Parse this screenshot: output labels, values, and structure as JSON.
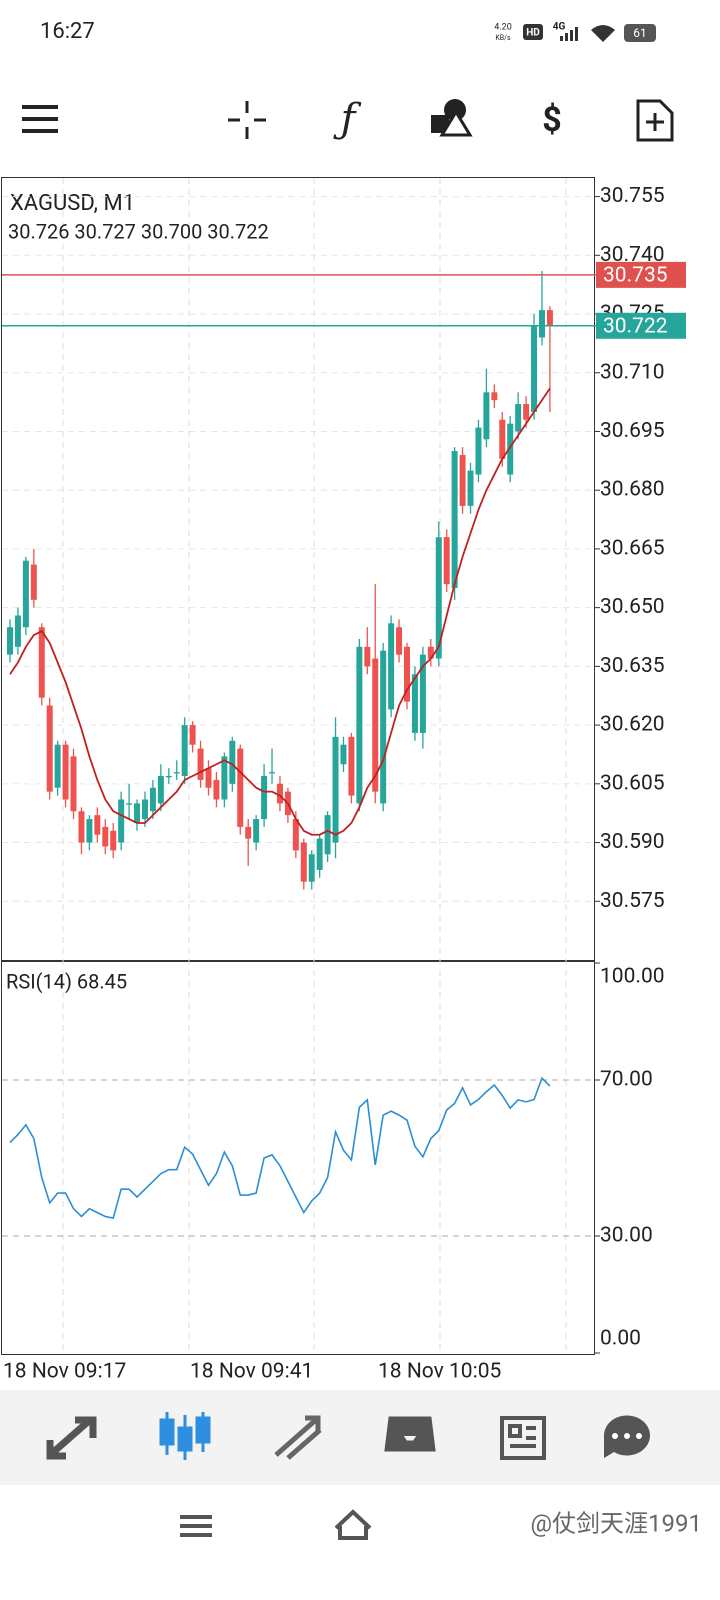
{
  "status_bar": {
    "time": "16:27",
    "speed": "4.20",
    "speed_unit": "KB/s",
    "hd": "HD",
    "network": "4G",
    "battery": "61"
  },
  "chart_data": [
    {
      "type": "candlestick",
      "title": "XAGUSD, M1",
      "ohlc_text": "30.726 30.727 30.700 30.722",
      "up_color": "#26a69a",
      "down_color": "#ef5350",
      "open": [
        30.638,
        30.64,
        30.645,
        30.661,
        30.645,
        30.625,
        30.604,
        30.615,
        30.612,
        30.598,
        30.59,
        30.597,
        30.594,
        30.593,
        30.59,
        30.6,
        30.595,
        30.596,
        30.598,
        30.6,
        30.607,
        30.608,
        30.607,
        30.62,
        30.614,
        30.609,
        30.606,
        30.601,
        30.605,
        30.614,
        30.594,
        30.59,
        30.596,
        30.608,
        30.605,
        30.603,
        30.596,
        30.59,
        30.58,
        30.583,
        30.587,
        30.59,
        30.61,
        30.617,
        30.6,
        30.64,
        30.637,
        30.6,
        30.624,
        30.645,
        30.64,
        30.618,
        30.618,
        30.64,
        30.637,
        30.668,
        30.655,
        30.689,
        30.676,
        30.684,
        30.693,
        30.705,
        30.698,
        30.684,
        30.695,
        30.702,
        30.7,
        30.719,
        30.726
      ],
      "high": [
        30.647,
        30.65,
        30.663,
        30.665,
        30.646,
        30.627,
        30.616,
        30.616,
        30.614,
        30.599,
        30.597,
        30.599,
        30.596,
        30.595,
        30.603,
        30.605,
        30.601,
        30.603,
        30.606,
        30.61,
        30.609,
        30.611,
        30.622,
        30.621,
        30.616,
        30.611,
        30.608,
        30.613,
        30.617,
        30.615,
        30.596,
        30.597,
        30.61,
        30.614,
        30.607,
        30.604,
        30.598,
        30.591,
        30.588,
        30.592,
        30.598,
        30.622,
        30.617,
        30.618,
        30.642,
        30.645,
        30.656,
        30.641,
        30.648,
        30.647,
        30.641,
        30.635,
        30.64,
        30.642,
        30.672,
        30.67,
        30.691,
        30.691,
        30.687,
        30.698,
        30.711,
        30.707,
        30.7,
        30.699,
        30.705,
        30.704,
        30.725,
        30.736,
        30.727
      ],
      "low": [
        30.636,
        30.638,
        30.643,
        30.65,
        30.625,
        30.601,
        30.602,
        30.599,
        30.596,
        30.587,
        30.588,
        30.59,
        30.587,
        30.586,
        30.588,
        30.596,
        30.593,
        30.594,
        30.596,
        30.598,
        30.605,
        30.606,
        30.605,
        30.613,
        30.604,
        30.602,
        30.599,
        30.599,
        30.603,
        30.592,
        30.584,
        30.588,
        30.594,
        30.605,
        30.598,
        30.595,
        30.586,
        30.578,
        30.578,
        30.581,
        30.585,
        30.586,
        30.608,
        30.6,
        30.598,
        30.633,
        30.6,
        30.598,
        30.622,
        30.636,
        30.624,
        30.616,
        30.614,
        30.635,
        30.635,
        30.654,
        30.652,
        30.674,
        30.674,
        30.682,
        30.691,
        30.701,
        30.686,
        30.682,
        30.693,
        30.696,
        30.698,
        30.717,
        30.7
      ],
      "close": [
        30.645,
        30.648,
        30.662,
        30.652,
        30.627,
        30.603,
        30.615,
        30.601,
        30.598,
        30.59,
        30.596,
        30.592,
        30.589,
        30.588,
        30.601,
        30.6,
        30.6,
        30.601,
        30.604,
        30.607,
        30.607,
        30.608,
        30.62,
        30.615,
        30.606,
        30.604,
        30.601,
        30.612,
        30.616,
        30.594,
        30.591,
        30.596,
        30.607,
        30.608,
        30.6,
        30.597,
        30.588,
        30.58,
        30.587,
        30.591,
        30.597,
        30.617,
        30.615,
        30.602,
        30.64,
        30.635,
        30.603,
        30.639,
        30.646,
        30.638,
        30.626,
        30.633,
        30.638,
        30.637,
        30.668,
        30.656,
        30.69,
        30.676,
        30.685,
        30.696,
        30.705,
        30.703,
        30.688,
        30.697,
        30.702,
        30.698,
        30.722,
        30.726,
        30.722
      ],
      "ma": {
        "color": "#c0201f",
        "values": [
          30.633,
          30.636,
          30.64,
          30.643,
          30.644,
          30.641,
          30.636,
          30.631,
          30.625,
          30.619,
          30.612,
          30.606,
          30.601,
          30.598,
          30.597,
          30.596,
          30.595,
          30.595,
          30.597,
          30.599,
          30.601,
          30.603,
          30.606,
          30.607,
          30.608,
          30.609,
          30.61,
          30.611,
          30.61,
          30.608,
          30.606,
          30.604,
          30.603,
          30.603,
          30.602,
          30.6,
          30.596,
          30.593,
          30.592,
          30.592,
          30.593,
          30.592,
          30.593,
          30.595,
          30.599,
          30.604,
          30.607,
          30.611,
          30.618,
          30.625,
          30.629,
          30.632,
          30.635,
          30.637,
          30.64,
          30.648,
          30.656,
          30.663,
          30.669,
          30.675,
          30.68,
          30.684,
          30.688,
          30.691,
          30.694,
          30.697,
          30.7,
          30.703,
          30.706
        ]
      },
      "price_lines": [
        {
          "value": 30.735,
          "color": "#e0504c"
        },
        {
          "value": 30.722,
          "color": "#26a69a"
        }
      ],
      "ylim": [
        30.56,
        30.76
      ],
      "yticks": [
        30.575,
        {
          "value": 30.59,
          "label": "30.590"
        },
        30.605,
        {
          "value": 30.62,
          "label": "30.620"
        },
        30.635,
        {
          "value": 30.65,
          "label": "30.650"
        },
        30.665,
        {
          "value": 30.68,
          "label": "30.680"
        },
        30.695,
        {
          "value": 30.71,
          "label": "30.710"
        },
        30.725,
        {
          "value": 30.74,
          "label": "30.740"
        },
        30.755
      ],
      "xtick_labels": [
        "18 Nov 09:17",
        "18 Nov 09:41",
        "18 Nov 10:05"
      ]
    },
    {
      "type": "line",
      "title": "RSI(14) 68.45",
      "color": "#2a8fd4",
      "values": [
        54,
        56,
        58.5,
        55,
        45,
        38.5,
        41,
        41,
        37,
        35,
        37,
        36,
        35,
        34.6,
        42,
        42,
        40,
        42,
        44,
        46,
        47,
        47,
        52.8,
        51,
        47,
        43,
        46,
        51.5,
        48,
        40.5,
        40.5,
        41,
        50,
        50.8,
        48,
        44,
        40,
        36,
        39,
        41,
        45,
        56.7,
        52,
        49.5,
        63,
        64.9,
        48.2,
        61,
        62,
        61,
        59.7,
        53,
        50.3,
        55,
        57,
        62.3,
        64,
        68,
        63.6,
        65,
        67,
        68.7,
        66,
        62.8,
        64.9,
        64.4,
        65,
        70.5,
        68.45
      ],
      "ylim": [
        0,
        100
      ],
      "yticks": [
        {
          "value": 0,
          "label": "0.00"
        },
        {
          "value": 30,
          "label": "30.00"
        },
        {
          "value": 70,
          "label": "70.00"
        },
        {
          "value": 100,
          "label": "100.00"
        }
      ]
    }
  ],
  "watermark": "@仗剑天涯1991"
}
